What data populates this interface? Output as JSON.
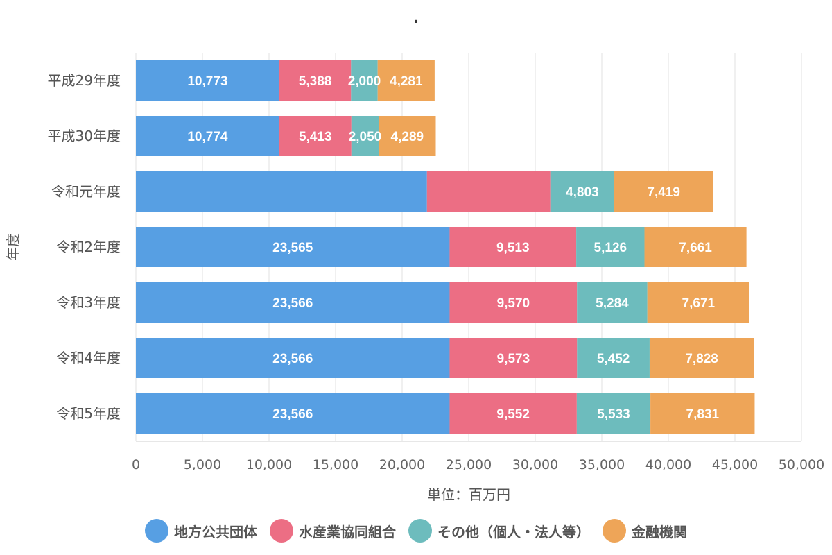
{
  "chart_data": {
    "type": "bar",
    "orientation": "horizontal",
    "stacked": true,
    "title": ".",
    "xlabel": "単位：百万円",
    "ylabel": "年度",
    "xlim": [
      0,
      50000
    ],
    "xticks": [
      0,
      5000,
      10000,
      15000,
      20000,
      25000,
      30000,
      35000,
      40000,
      45000,
      50000
    ],
    "xtick_labels": [
      "0",
      "5,000",
      "10,000",
      "15,000",
      "20,000",
      "25,000",
      "30,000",
      "35,000",
      "40,000",
      "45,000",
      "50,000"
    ],
    "grid": true,
    "legend_position": "bottom",
    "categories": [
      "平成29年度",
      "平成30年度",
      "令和元年度",
      "令和2年度",
      "令和3年度",
      "令和4年度",
      "令和5年度"
    ],
    "series": [
      {
        "name": "地方公共団体",
        "color": "#579fe3",
        "values": [
          10773,
          10774,
          21865,
          23565,
          23566,
          23566,
          23566
        ]
      },
      {
        "name": "水産業協同組合",
        "color": "#ec6e84",
        "values": [
          5388,
          5413,
          9267,
          9513,
          9570,
          9573,
          9552
        ]
      },
      {
        "name": "その他（個人・法人等）",
        "color": "#6dbcbd",
        "values": [
          2000,
          2050,
          4803,
          5126,
          5284,
          5452,
          5533
        ]
      },
      {
        "name": "金融機関",
        "color": "#eea558",
        "values": [
          4281,
          4289,
          7419,
          7661,
          7671,
          7828,
          7831
        ]
      }
    ],
    "hidden_labels": [
      [
        2,
        0
      ],
      [
        2,
        1
      ]
    ]
  }
}
